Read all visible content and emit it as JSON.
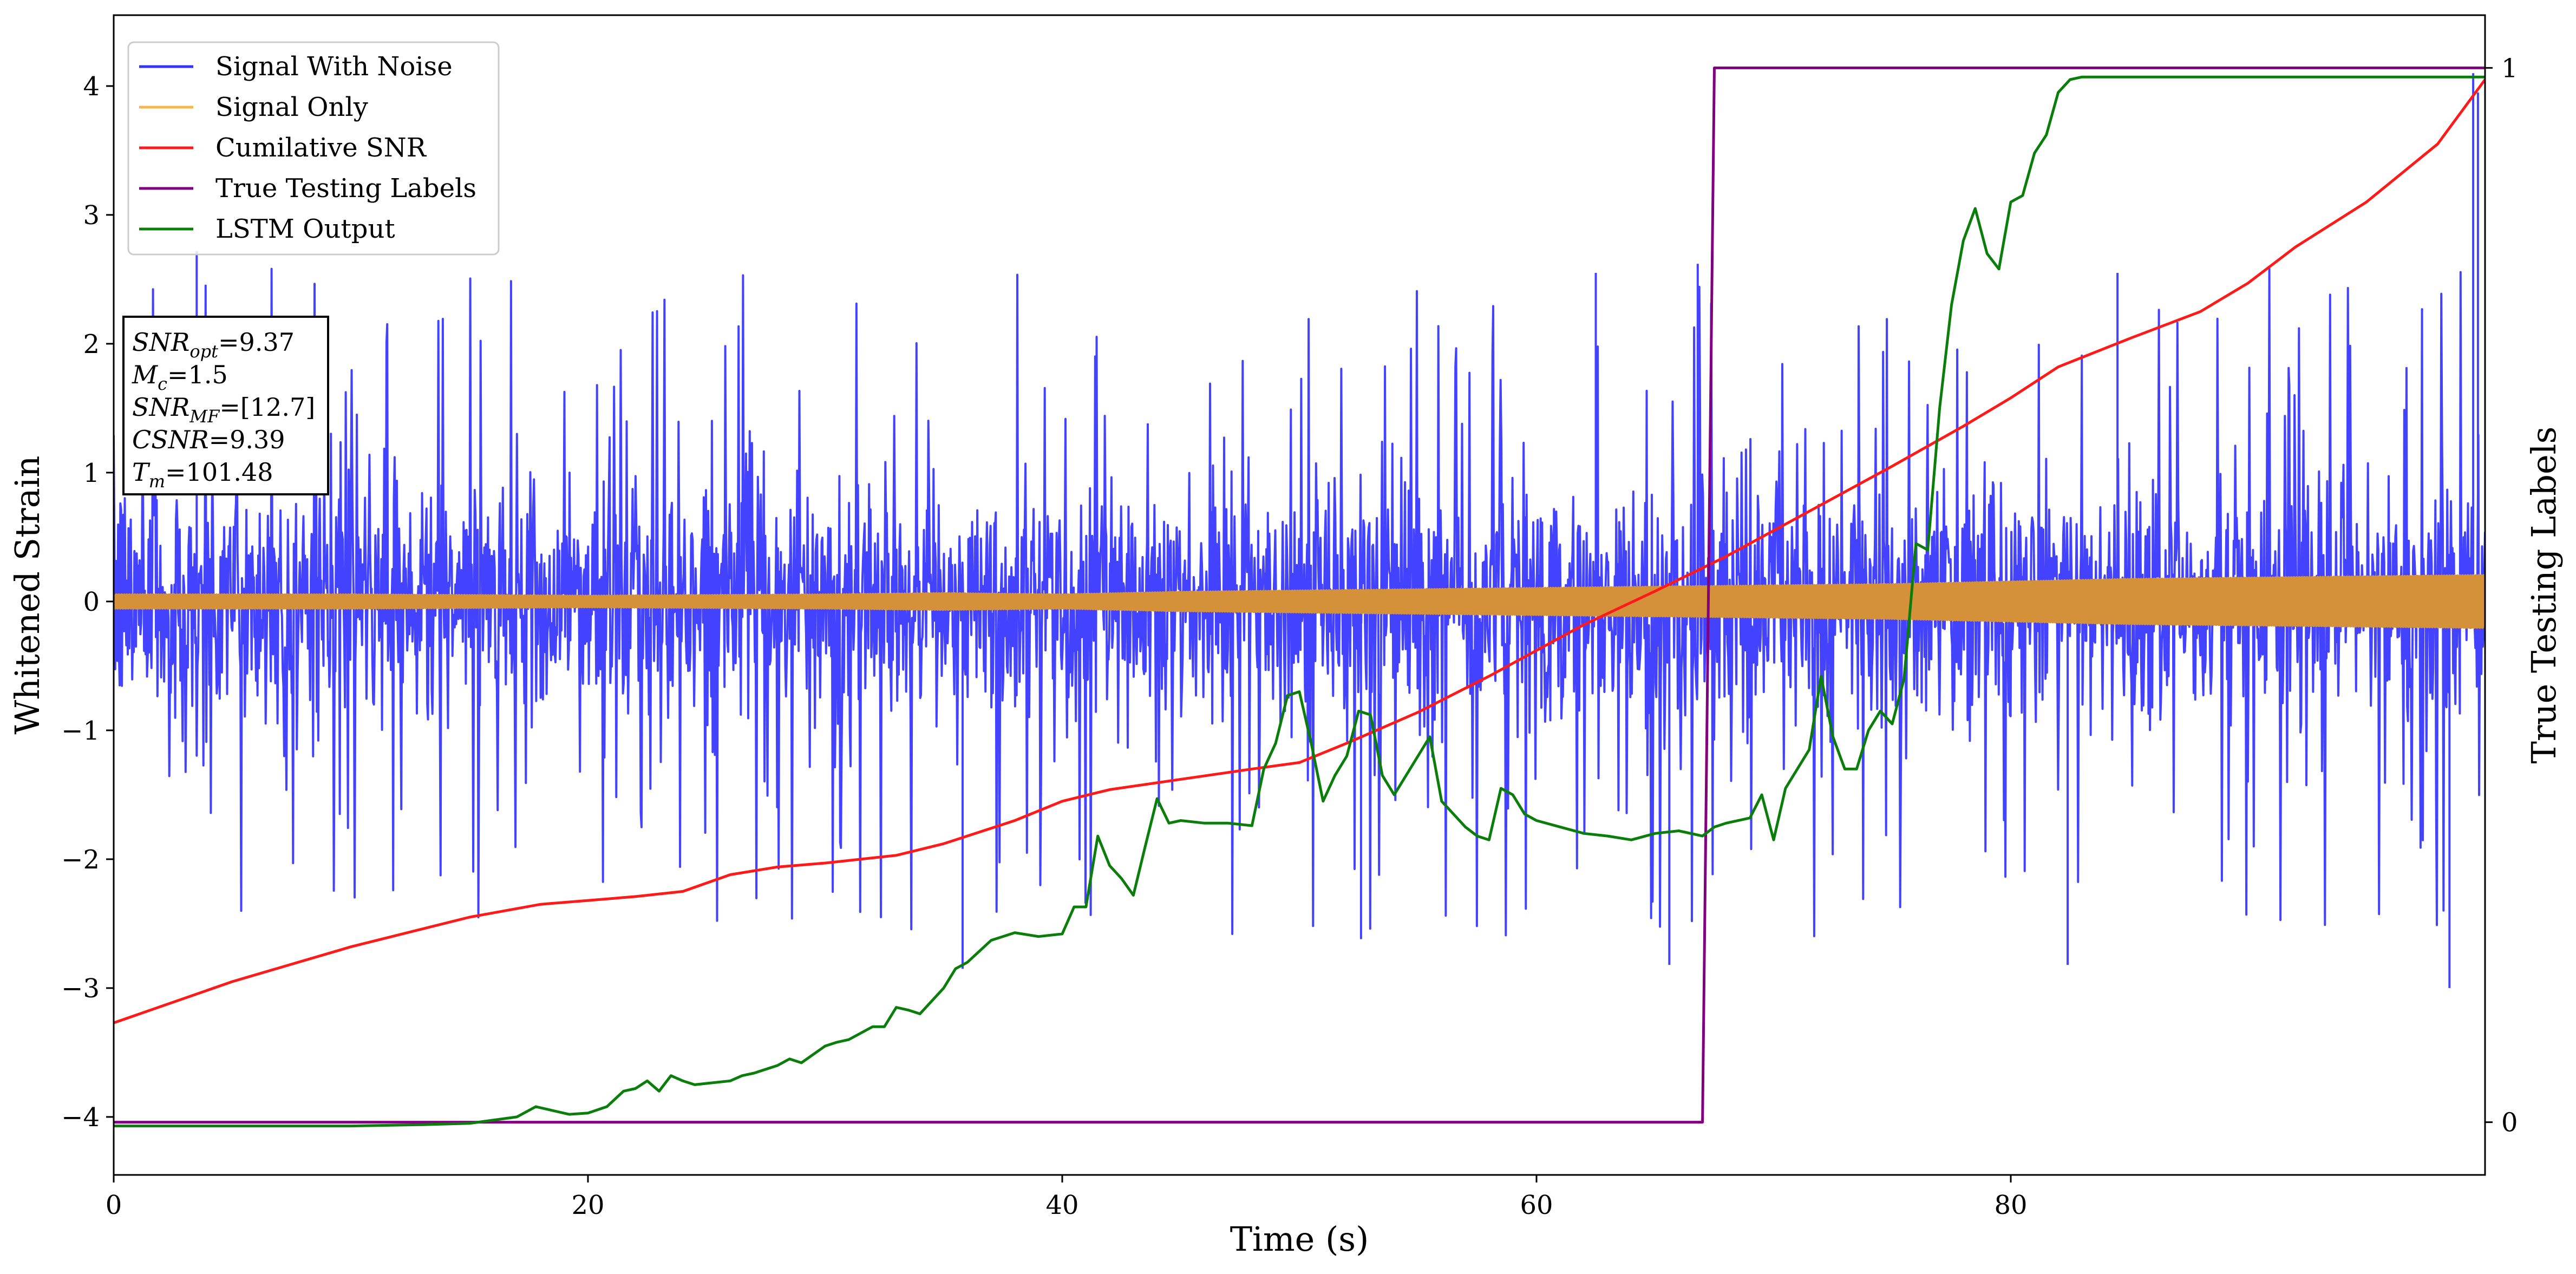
{
  "chart_data": {
    "type": "line",
    "title": "",
    "xlabel": "Time (s)",
    "ylabel": "Whitened Strain",
    "y2label": "True Testing Labels",
    "xlim": [
      0,
      100
    ],
    "ylim": [
      -4.45,
      4.55
    ],
    "y2lim": [
      -0.05,
      1.05
    ],
    "xticks": [
      0,
      20,
      40,
      60,
      80
    ],
    "yticks": [
      -4,
      -3,
      -2,
      -1,
      0,
      1,
      2,
      3,
      4
    ],
    "y2ticks": [
      0,
      1
    ],
    "legend_position": "top-left",
    "grid": false,
    "info_box": {
      "lines": [
        {
          "base": "SNR",
          "sub": "opt",
          "value": "=9.37"
        },
        {
          "base": "M",
          "sub": "c",
          "value": "=1.5"
        },
        {
          "base": "SNR",
          "sub": "MF",
          "value": "=[12.7]"
        },
        {
          "base": "CSNR",
          "sub": "",
          "value": "=9.39"
        },
        {
          "base": "T",
          "sub": "m",
          "value": "=101.48"
        }
      ]
    },
    "series": [
      {
        "name": "Signal With Noise",
        "color": "#3333ff",
        "axis": "left",
        "kind": "noise",
        "band": {
          "core": 0.75,
          "spike_max": 2.6,
          "spike_min": -2.8,
          "extreme_max": 4.1,
          "extreme_min": -3.0
        }
      },
      {
        "name": "Signal Only",
        "color": "#d4913a",
        "axis": "left",
        "kind": "envelope",
        "envelope": {
          "x": [
            0,
            10,
            20,
            30,
            35,
            40,
            45,
            50,
            60,
            70,
            75,
            80,
            85,
            90,
            95,
            100
          ],
          "amp": [
            0.05,
            0.05,
            0.04,
            0.05,
            0.06,
            0.05,
            0.07,
            0.08,
            0.1,
            0.12,
            0.13,
            0.15,
            0.17,
            0.18,
            0.19,
            0.2
          ]
        }
      },
      {
        "name": "Cumilative SNR",
        "color": "#ff1a1a",
        "axis": "left",
        "x": [
          0,
          5,
          10,
          15,
          18,
          20,
          22,
          24,
          26,
          28,
          30,
          33,
          35,
          38,
          40,
          42,
          45,
          48,
          50,
          52,
          55,
          58,
          60,
          62,
          65,
          68,
          70,
          72,
          75,
          78,
          80,
          82,
          85,
          88,
          90,
          92,
          95,
          98,
          100
        ],
        "y": [
          -3.27,
          -2.95,
          -2.68,
          -2.45,
          -2.35,
          -2.32,
          -2.29,
          -2.25,
          -2.12,
          -2.06,
          -2.03,
          -1.97,
          -1.88,
          -1.7,
          -1.55,
          -1.46,
          -1.38,
          -1.3,
          -1.25,
          -1.1,
          -0.86,
          -0.58,
          -0.38,
          -0.18,
          0.08,
          0.35,
          0.55,
          0.75,
          1.05,
          1.36,
          1.58,
          1.82,
          2.04,
          2.25,
          2.47,
          2.75,
          3.1,
          3.55,
          4.05
        ]
      },
      {
        "name": "True Testing Labels",
        "color": "#800080",
        "axis": "right",
        "x": [
          0,
          67.0,
          67.5,
          100
        ],
        "y": [
          0,
          0,
          1,
          1
        ]
      },
      {
        "name": "LSTM Output",
        "color": "#0a7d0a",
        "axis": "left",
        "x": [
          0,
          5,
          10,
          13,
          15,
          17,
          17.8,
          18.5,
          19.2,
          20,
          20.8,
          21.5,
          22,
          22.5,
          23,
          23.5,
          24,
          24.5,
          25,
          26,
          26.5,
          27,
          28,
          28.5,
          29,
          30,
          30.5,
          31,
          31.5,
          32,
          32.5,
          33,
          33.5,
          34,
          34.5,
          35,
          35.5,
          36,
          37,
          38,
          39,
          40,
          40.5,
          41,
          41.5,
          42,
          42.5,
          43,
          43.5,
          44,
          44.5,
          45,
          46,
          47,
          48,
          48.5,
          49,
          49.5,
          50,
          50.5,
          51,
          51.5,
          52,
          52.5,
          53,
          53.5,
          54,
          55,
          55.5,
          56,
          56.5,
          57,
          57.5,
          58,
          58.5,
          59,
          59.5,
          60,
          61,
          62,
          63,
          64,
          65,
          66,
          67,
          67.5,
          68,
          69,
          69.5,
          70,
          70.5,
          71,
          71.5,
          72,
          72.5,
          73,
          73.5,
          74,
          74.5,
          75,
          75.5,
          76,
          76.5,
          77,
          77.5,
          78,
          78.5,
          79,
          79.5,
          80,
          80.5,
          81,
          81.5,
          82,
          82.5,
          83,
          84,
          85,
          90,
          100
        ],
        "y": [
          -4.07,
          -4.07,
          -4.07,
          -4.06,
          -4.05,
          -4.0,
          -3.92,
          -3.95,
          -3.98,
          -3.97,
          -3.92,
          -3.8,
          -3.78,
          -3.72,
          -3.8,
          -3.68,
          -3.72,
          -3.75,
          -3.74,
          -3.72,
          -3.68,
          -3.66,
          -3.6,
          -3.55,
          -3.58,
          -3.45,
          -3.42,
          -3.4,
          -3.35,
          -3.3,
          -3.3,
          -3.15,
          -3.17,
          -3.2,
          -3.1,
          -3.0,
          -2.85,
          -2.8,
          -2.63,
          -2.57,
          -2.6,
          -2.58,
          -2.37,
          -2.37,
          -1.82,
          -2.05,
          -2.15,
          -2.28,
          -1.9,
          -1.53,
          -1.72,
          -1.7,
          -1.72,
          -1.72,
          -1.74,
          -1.3,
          -1.1,
          -0.73,
          -0.7,
          -1.1,
          -1.55,
          -1.35,
          -1.2,
          -0.85,
          -0.88,
          -1.35,
          -1.5,
          -1.2,
          -1.05,
          -1.55,
          -1.65,
          -1.75,
          -1.82,
          -1.85,
          -1.45,
          -1.5,
          -1.65,
          -1.7,
          -1.75,
          -1.8,
          -1.82,
          -1.85,
          -1.8,
          -1.78,
          -1.82,
          -1.75,
          -1.72,
          -1.68,
          -1.5,
          -1.85,
          -1.45,
          -1.3,
          -1.15,
          -0.58,
          -1.05,
          -1.3,
          -1.3,
          -1.0,
          -0.85,
          -0.95,
          -0.6,
          0.45,
          0.4,
          1.5,
          2.3,
          2.8,
          3.05,
          2.7,
          2.58,
          3.1,
          3.15,
          3.48,
          3.62,
          3.95,
          4.05,
          4.07,
          4.07,
          4.07,
          4.07,
          4.07
        ]
      }
    ]
  }
}
